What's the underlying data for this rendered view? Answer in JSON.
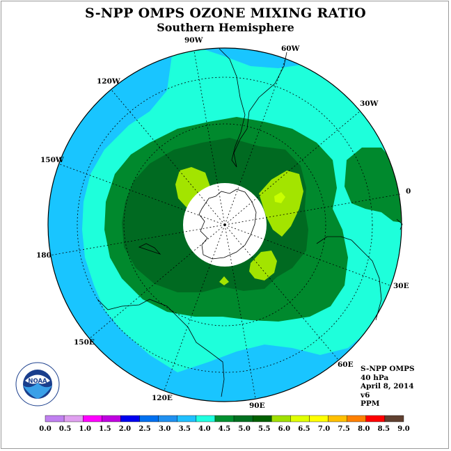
{
  "title": "S-NPP OMPS OZONE MIXING RATIO",
  "subtitle": "Southern Hemisphere",
  "longitude_labels": {
    "w90": "90W",
    "w60": "60W",
    "w30": "30W",
    "w120": "120W",
    "w150": "150W",
    "e0": "0",
    "w180": "180",
    "e30": "30E",
    "e60": "60E",
    "e90": "90E",
    "e120": "120E",
    "e150": "150E"
  },
  "info": {
    "instrument": "S-NPP OMPS",
    "level": "40 hPa",
    "date": "April 8, 2014",
    "version": "v6",
    "units": "PPM"
  },
  "logo": {
    "text": "NOAA",
    "icon": "noaa-logo-icon"
  },
  "colorbar": {
    "labels": [
      "0.0",
      "0.5",
      "1.0",
      "1.5",
      "2.0",
      "2.5",
      "3.0",
      "3.5",
      "4.0",
      "4.5",
      "5.0",
      "5.5",
      "6.0",
      "6.5",
      "7.0",
      "7.5",
      "8.0",
      "8.5",
      "9.0"
    ],
    "colors": [
      "#c080f0",
      "#e0a0f0",
      "#ff00ff",
      "#c000e0",
      "#0000f0",
      "#0070f0",
      "#2090f0",
      "#20c0ff",
      "#20ffe0",
      "#009030",
      "#007020",
      "#006000",
      "#a0e000",
      "#e0ff00",
      "#ffff00",
      "#ffc000",
      "#ff8000",
      "#ff0000",
      "#604030"
    ]
  },
  "map_colors": {
    "band_3_0": "#19c5ff",
    "band_3_5": "#1effdb",
    "band_4_0": "#00892d",
    "band_4_5": "#006a21",
    "band_5_5": "#a3e400",
    "band_6_0": "#c9ff00",
    "polar_night": "#ffffff"
  }
}
